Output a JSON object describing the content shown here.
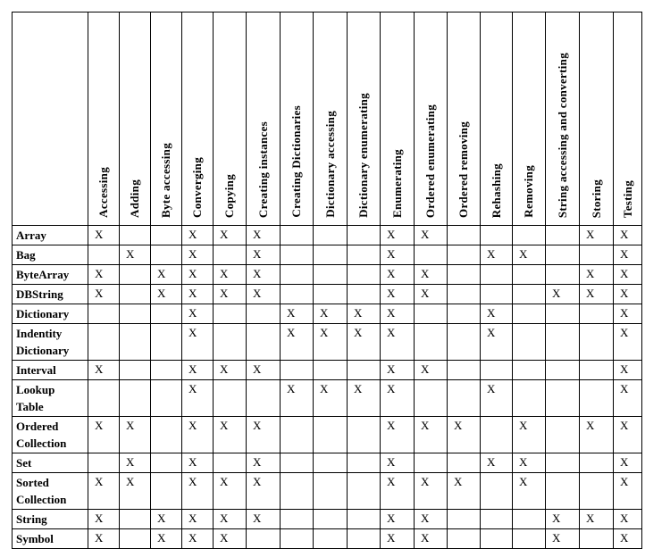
{
  "table": {
    "columns": [
      "Accessing",
      "Adding",
      "Byte accessing",
      "Converging",
      "Copying",
      "Creating instances",
      "Creating Dictionaries",
      "Dictionary accessing",
      "Dictionary enumerating",
      "Enumerating",
      "Ordered enumerating",
      "Ordered removing",
      "Rehashing",
      "Removing",
      "String accessing and converting",
      "Storing",
      "Testing"
    ],
    "rows": [
      {
        "label": "Array",
        "cells": [
          "X",
          "",
          "",
          "X",
          "X",
          "X",
          "",
          "",
          "",
          "X",
          "X",
          "",
          "",
          "",
          "",
          "X",
          "X"
        ]
      },
      {
        "label": "Bag",
        "cells": [
          "",
          "X",
          "",
          "X",
          "",
          "X",
          "",
          "",
          "",
          "X",
          "",
          "",
          "X",
          "X",
          "",
          "",
          "X"
        ]
      },
      {
        "label": "ByteArray",
        "cells": [
          "X",
          "",
          "X",
          "X",
          "X",
          "X",
          "",
          "",
          "",
          "X",
          "X",
          "",
          "",
          "",
          "",
          "X",
          "X"
        ]
      },
      {
        "label": "DBString",
        "cells": [
          "X",
          "",
          "X",
          "X",
          "X",
          "X",
          "",
          "",
          "",
          "X",
          "X",
          "",
          "",
          "",
          "X",
          "X",
          "X"
        ]
      },
      {
        "label": "Dictionary",
        "cells": [
          "",
          "",
          "",
          "X",
          "",
          "",
          "X",
          "X",
          "X",
          "X",
          "",
          "",
          "X",
          "",
          "",
          "",
          "X"
        ]
      },
      {
        "label": "Indentity Dictionary",
        "cells": [
          "",
          "",
          "",
          "X",
          "",
          "",
          "X",
          "X",
          "X",
          "X",
          "",
          "",
          "X",
          "",
          "",
          "",
          "X"
        ]
      },
      {
        "label": "Interval",
        "cells": [
          "X",
          "",
          "",
          "X",
          "X",
          "X",
          "",
          "",
          "",
          "X",
          "X",
          "",
          "",
          "",
          "",
          "",
          "X"
        ]
      },
      {
        "label": "Lookup Table",
        "cells": [
          "",
          "",
          "",
          "X",
          "",
          "",
          "X",
          "X",
          "X",
          "X",
          "",
          "",
          "X",
          "",
          "",
          "",
          "X"
        ]
      },
      {
        "label": "Ordered Collection",
        "cells": [
          "X",
          "X",
          "",
          "X",
          "X",
          "X",
          "",
          "",
          "",
          "X",
          "X",
          "X",
          "",
          "X",
          "",
          "X",
          "X"
        ]
      },
      {
        "label": "Set",
        "cells": [
          "",
          "X",
          "",
          "X",
          "",
          "X",
          "",
          "",
          "",
          "X",
          "",
          "",
          "X",
          "X",
          "",
          "",
          "X"
        ]
      },
      {
        "label": "Sorted Collection",
        "cells": [
          "X",
          "X",
          "",
          "X",
          "X",
          "X",
          "",
          "",
          "",
          "X",
          "X",
          "X",
          "",
          "X",
          "",
          "",
          "X"
        ]
      },
      {
        "label": "String",
        "cells": [
          "X",
          "",
          "X",
          "X",
          "X",
          "X",
          "",
          "",
          "",
          "X",
          "X",
          "",
          "",
          "",
          "X",
          "X",
          "X"
        ]
      },
      {
        "label": "Symbol",
        "cells": [
          "X",
          "",
          "X",
          "X",
          "X",
          "",
          "",
          "",
          "",
          "X",
          "X",
          "",
          "",
          "",
          "X",
          "",
          "X"
        ]
      }
    ]
  }
}
